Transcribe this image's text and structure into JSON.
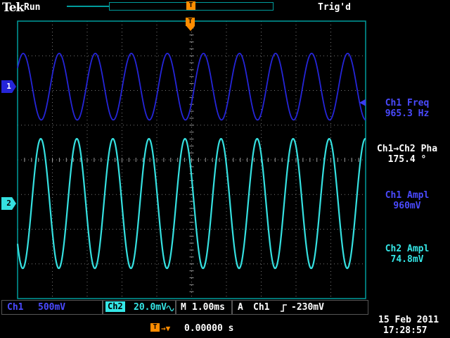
{
  "colors": {
    "ch1": "#4a4aff",
    "ch1_trace": "#2525d8",
    "ch2": "#35e6e6",
    "ch2_trace": "#35e0e0",
    "orange": "#ff8c00",
    "teal": "#009c9c",
    "grid": "#777777",
    "tick": "#999999",
    "white": "#ffffff"
  },
  "header": {
    "logo": "Tek",
    "acq_state": "Run",
    "trig_status": "Trig'd",
    "trigger_marker": "T"
  },
  "graticule_trigger_marker": "T",
  "channel_markers": {
    "ch1": "1",
    "ch2": "2"
  },
  "measurements": [
    {
      "label": "Ch1 Freq",
      "value": "965.3 Hz",
      "color_key": "ch1"
    },
    {
      "label": "Ch1→Ch2 Pha",
      "value": "175.4 °",
      "color_key": "white"
    },
    {
      "label": "Ch1 Ampl",
      "value": "960mV",
      "color_key": "ch1"
    },
    {
      "label": "Ch2 Ampl",
      "value": "74.8mV",
      "color_key": "ch2"
    }
  ],
  "status_bar": {
    "ch1_label": "Ch1",
    "ch1_scale": "500mV",
    "ch2_label": "Ch2",
    "ch2_scale": "20.0mV",
    "timebase_label": "M",
    "timebase_value": "1.00ms",
    "trig_group_label": "A",
    "trig_source": "Ch1",
    "trig_level": "-230mV"
  },
  "horizontal_bar": {
    "marker": "T",
    "arrows": "→▼",
    "position": "0.00000 s"
  },
  "datetime": {
    "date": "15 Feb 2011",
    "time": "17:28:57"
  },
  "chart_data": {
    "type": "line",
    "description": "Oscilloscope graticule 10x8 divisions showing two sine waves",
    "time_per_div_ms": 1.0,
    "x_divisions": 10,
    "y_divisions": 8,
    "grid": "dotted",
    "trigger": {
      "source": "Ch1",
      "level_mv": -230,
      "slope": "rising",
      "x_position_div": 5,
      "time_offset_s": "0.00000 s"
    },
    "series": [
      {
        "name": "Ch1",
        "freq_hz": 965.3,
        "amplitude_pp_mv": 960,
        "volts_per_div_mv": 500,
        "phase_at_trigger_deg": -28.6,
        "center_div_from_top": 1.89,
        "color": "#2525d8"
      },
      {
        "name": "Ch2",
        "freq_hz": 965.3,
        "amplitude_pp_mv": 74.8,
        "volts_per_div_mv": 20,
        "phase_at_trigger_deg": -204.0,
        "center_div_from_top": 5.26,
        "color": "#35e0e0"
      }
    ],
    "measurements": [
      {
        "label": "Ch1 Freq",
        "value": 965.3,
        "unit": "Hz"
      },
      {
        "label": "Ch1→Ch2 Pha",
        "value": 175.4,
        "unit": "°"
      },
      {
        "label": "Ch1 Ampl",
        "value": 960,
        "unit": "mV"
      },
      {
        "label": "Ch2 Ampl",
        "value": 74.8,
        "unit": "mV"
      }
    ]
  }
}
